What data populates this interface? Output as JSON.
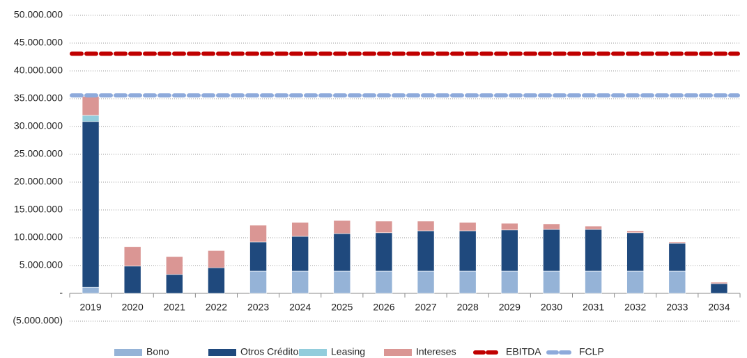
{
  "chart_data": {
    "type": "stacked-bar-line",
    "categories": [
      "2019",
      "2020",
      "2021",
      "2022",
      "2023",
      "2024",
      "2025",
      "2026",
      "2027",
      "2028",
      "2029",
      "2030",
      "2031",
      "2032",
      "2033",
      "2034"
    ],
    "series": [
      {
        "name": "Bono",
        "kind": "bar",
        "color": "#95b3d7",
        "values": [
          1100000,
          0,
          0,
          0,
          4000000,
          4000000,
          4000000,
          4000000,
          4000000,
          4000000,
          4000000,
          4000000,
          4000000,
          4000000,
          4000000,
          0
        ]
      },
      {
        "name": "Otros Créditos",
        "kind": "bar",
        "color": "#1f497d",
        "values": [
          29800000,
          4900000,
          3400000,
          4600000,
          5250000,
          6250000,
          6750000,
          6900000,
          7250000,
          7250000,
          7400000,
          7500000,
          7500000,
          6900000,
          5000000,
          1750000
        ]
      },
      {
        "name": "Leasing",
        "kind": "bar",
        "color": "#92cddc",
        "values": [
          1100000,
          0,
          0,
          0,
          0,
          0,
          0,
          0,
          0,
          0,
          0,
          0,
          0,
          0,
          0,
          0
        ]
      },
      {
        "name": "Intereses",
        "kind": "bar",
        "color": "#da9694",
        "values": [
          3400000,
          3500000,
          3200000,
          3100000,
          3000000,
          2500000,
          2350000,
          2100000,
          1750000,
          1500000,
          1200000,
          1000000,
          600000,
          350000,
          250000,
          250000
        ]
      },
      {
        "name": "EBITDA",
        "kind": "line",
        "color": "#c00000",
        "values": [
          43100000,
          43100000,
          43100000,
          43100000,
          43100000,
          43100000,
          43100000,
          43100000,
          43100000,
          43100000,
          43100000,
          43100000,
          43100000,
          43100000,
          43100000,
          43100000
        ]
      },
      {
        "name": "FCLP",
        "kind": "line",
        "color": "#8eaadb",
        "values": [
          35600000,
          35600000,
          35600000,
          35600000,
          35600000,
          35600000,
          35600000,
          35600000,
          35600000,
          35600000,
          35600000,
          35600000,
          35600000,
          35600000,
          35600000,
          35600000
        ]
      }
    ],
    "ylim": [
      -5000000,
      50000000
    ],
    "yticks": [
      {
        "value": -5000000,
        "label": "(5.000.000)"
      },
      {
        "value": 0,
        "label": "-"
      },
      {
        "value": 5000000,
        "label": "5.000.000"
      },
      {
        "value": 10000000,
        "label": "10.000.000"
      },
      {
        "value": 15000000,
        "label": "15.000.000"
      },
      {
        "value": 20000000,
        "label": "20.000.000"
      },
      {
        "value": 25000000,
        "label": "25.000.000"
      },
      {
        "value": 30000000,
        "label": "30.000.000"
      },
      {
        "value": 35000000,
        "label": "35.000.000"
      },
      {
        "value": 40000000,
        "label": "40.000.000"
      },
      {
        "value": 45000000,
        "label": "45.000.000"
      },
      {
        "value": 50000000,
        "label": "50.000.000"
      }
    ],
    "grid": true
  }
}
